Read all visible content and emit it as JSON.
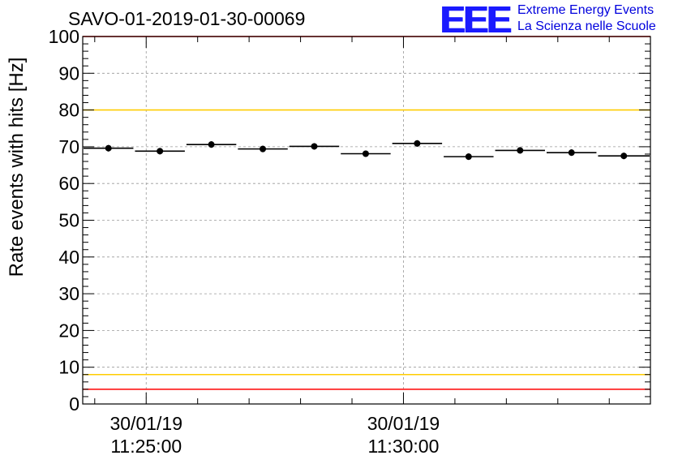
{
  "title": "SAVO-01-2019-01-30-00069",
  "logo": {
    "text": "EEE",
    "line1": "Extreme Energy Events",
    "line2": "La Scienza nelle Scuole",
    "color": "#1a1aff"
  },
  "colors": {
    "threshold_red": "#ff0000",
    "threshold_yellow": "#ffcc00",
    "points": "#000000"
  },
  "chart_data": {
    "type": "scatter",
    "title": "SAVO-01-2019-01-30-00069",
    "xlabel": "",
    "ylabel": "Rate events with hits [Hz]",
    "ylim": [
      0,
      100
    ],
    "yticks": [
      0,
      10,
      20,
      30,
      40,
      50,
      60,
      70,
      80,
      90,
      100
    ],
    "x_ticks": [
      {
        "time": "2019-01-30 11:25:00",
        "date_label": "30/01/19",
        "time_label": "11:25:00"
      },
      {
        "time": "2019-01-30 11:30:00",
        "date_label": "30/01/19",
        "time_label": "11:30:00"
      }
    ],
    "xlim": [
      "2019-01-30 11:23:46",
      "2019-01-30 11:34:48"
    ],
    "grid": true,
    "thresholds": [
      {
        "value": 100,
        "color": "#ff0000"
      },
      {
        "value": 80,
        "color": "#ffcc00"
      },
      {
        "value": 8,
        "color": "#ffcc00"
      },
      {
        "value": 4,
        "color": "#ff0000"
      }
    ],
    "series": [
      {
        "points": [
          {
            "x_start": "2019-01-30 11:23:46",
            "x_end": "2019-01-30 11:24:46",
            "y": 69.6
          },
          {
            "x_start": "2019-01-30 11:24:46",
            "x_end": "2019-01-30 11:25:46",
            "y": 68.8
          },
          {
            "x_start": "2019-01-30 11:25:46",
            "x_end": "2019-01-30 11:26:46",
            "y": 70.6
          },
          {
            "x_start": "2019-01-30 11:26:46",
            "x_end": "2019-01-30 11:27:46",
            "y": 69.4
          },
          {
            "x_start": "2019-01-30 11:27:46",
            "x_end": "2019-01-30 11:28:46",
            "y": 70.1
          },
          {
            "x_start": "2019-01-30 11:28:46",
            "x_end": "2019-01-30 11:29:46",
            "y": 68.1
          },
          {
            "x_start": "2019-01-30 11:29:46",
            "x_end": "2019-01-30 11:30:46",
            "y": 70.9
          },
          {
            "x_start": "2019-01-30 11:30:46",
            "x_end": "2019-01-30 11:31:46",
            "y": 67.3
          },
          {
            "x_start": "2019-01-30 11:31:46",
            "x_end": "2019-01-30 11:32:46",
            "y": 69.0
          },
          {
            "x_start": "2019-01-30 11:32:46",
            "x_end": "2019-01-30 11:33:46",
            "y": 68.4
          },
          {
            "x_start": "2019-01-30 11:33:46",
            "x_end": "2019-01-30 11:34:48",
            "y": 67.5
          }
        ]
      }
    ]
  }
}
